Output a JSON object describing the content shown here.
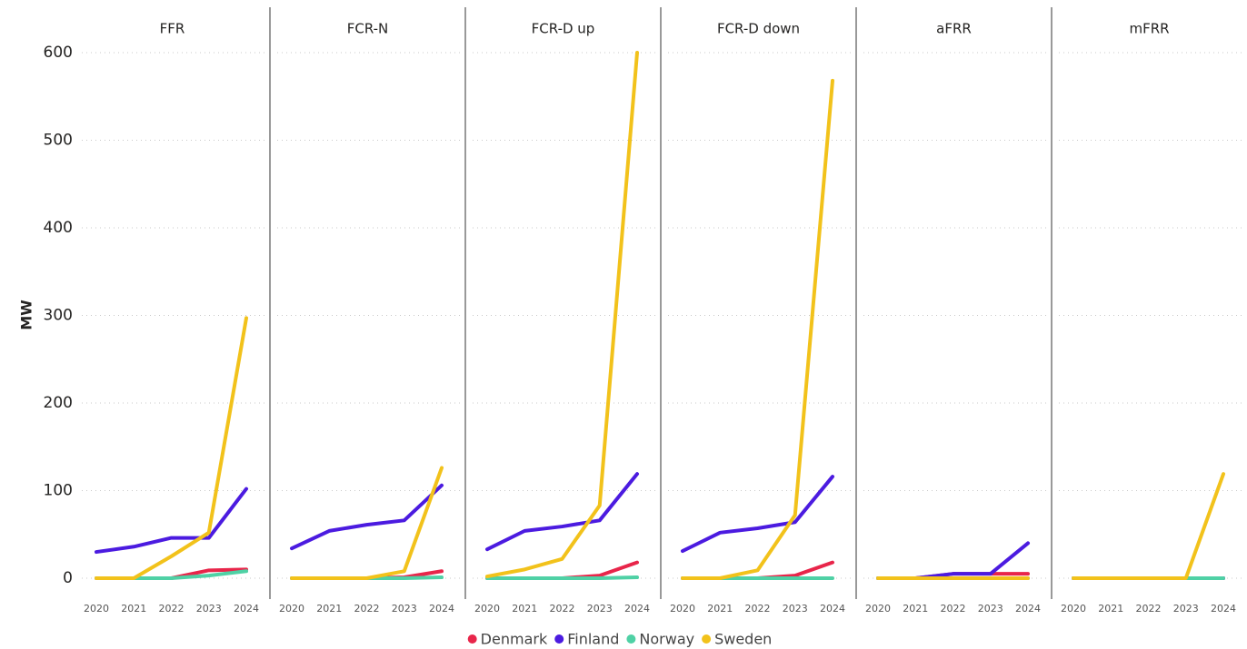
{
  "chart_data": {
    "type": "line",
    "y_label": "MW",
    "categories": [
      "2020",
      "2021",
      "2022",
      "2023",
      "2024"
    ],
    "ylim": [
      0,
      600
    ],
    "yticks": [
      0,
      100,
      200,
      300,
      400,
      500,
      600
    ],
    "grid": true,
    "series": [
      {
        "name": "Denmark",
        "color": "#e8254a"
      },
      {
        "name": "Finland",
        "color": "#4b1be0"
      },
      {
        "name": "Norway",
        "color": "#4fd1a5"
      },
      {
        "name": "Sweden",
        "color": "#f2c21b"
      }
    ],
    "panels": [
      {
        "title": "FFR",
        "values": [
          [
            0,
            0,
            0,
            9,
            10
          ],
          [
            30,
            36,
            46,
            46,
            102
          ],
          [
            0,
            0,
            0,
            3,
            8
          ],
          [
            0,
            0,
            25,
            52,
            297
          ]
        ]
      },
      {
        "title": "FCR-N",
        "values": [
          [
            0,
            0,
            0,
            1,
            8
          ],
          [
            34,
            54,
            61,
            66,
            106
          ],
          [
            0,
            0,
            0,
            0,
            1
          ],
          [
            0,
            0,
            0,
            8,
            126
          ]
        ]
      },
      {
        "title": "FCR-D up",
        "values": [
          [
            0,
            0,
            0,
            3,
            18
          ],
          [
            33,
            54,
            59,
            66,
            119
          ],
          [
            0,
            0,
            0,
            0,
            1
          ],
          [
            2,
            10,
            22,
            83,
            600
          ]
        ]
      },
      {
        "title": "FCR-D down",
        "values": [
          [
            0,
            0,
            0,
            3,
            18
          ],
          [
            31,
            52,
            57,
            64,
            116
          ],
          [
            0,
            0,
            0,
            0,
            0
          ],
          [
            0,
            0,
            9,
            72,
            568
          ]
        ]
      },
      {
        "title": "aFRR",
        "values": [
          [
            0,
            0,
            5,
            5,
            5
          ],
          [
            0,
            0,
            5,
            5,
            40
          ],
          [
            0,
            0,
            0,
            0,
            0
          ],
          [
            0,
            0,
            0,
            0,
            0
          ]
        ]
      },
      {
        "title": "mFRR",
        "values": [
          [
            0,
            0,
            0,
            0,
            0
          ],
          [
            0,
            0,
            0,
            0,
            0
          ],
          [
            0,
            0,
            0,
            0,
            0
          ],
          [
            0,
            0,
            0,
            0,
            119
          ]
        ]
      }
    ]
  }
}
